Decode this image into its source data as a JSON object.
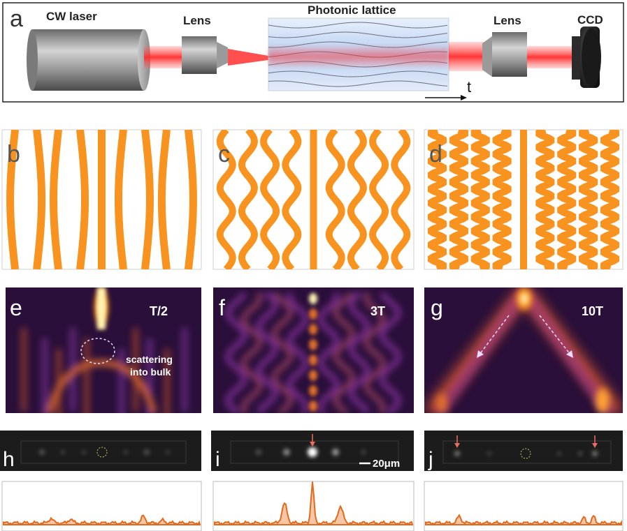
{
  "panel_a": {
    "letter": "a",
    "laser_label": "CW laser",
    "lens1_label": "Lens",
    "lattice_label": "Photonic lattice",
    "lens2_label": "Lens",
    "ccd_label": "CCD",
    "axis_label": "t"
  },
  "lattices": [
    {
      "letter": "b",
      "periods": 0.5
    },
    {
      "letter": "c",
      "periods": 3
    },
    {
      "letter": "d",
      "periods": 10
    }
  ],
  "maps": [
    {
      "letter": "e",
      "time_label": "T/2",
      "annotation_line1": "scattering",
      "annotation_line2": "into bulk"
    },
    {
      "letter": "f",
      "time_label": "3T"
    },
    {
      "letter": "g",
      "time_label": "10T"
    }
  ],
  "ccd": [
    {
      "letter": "h"
    },
    {
      "letter": "i",
      "scale_label": "20μm"
    },
    {
      "letter": "j"
    }
  ],
  "colors": {
    "waveguide": "#f7931e",
    "laser": "#ff3b3b",
    "profile": "#e06a1e",
    "profile_fill": "#f6c6a6",
    "map_bg": "#2a0f3a",
    "arrow": "#ee6b5f"
  }
}
